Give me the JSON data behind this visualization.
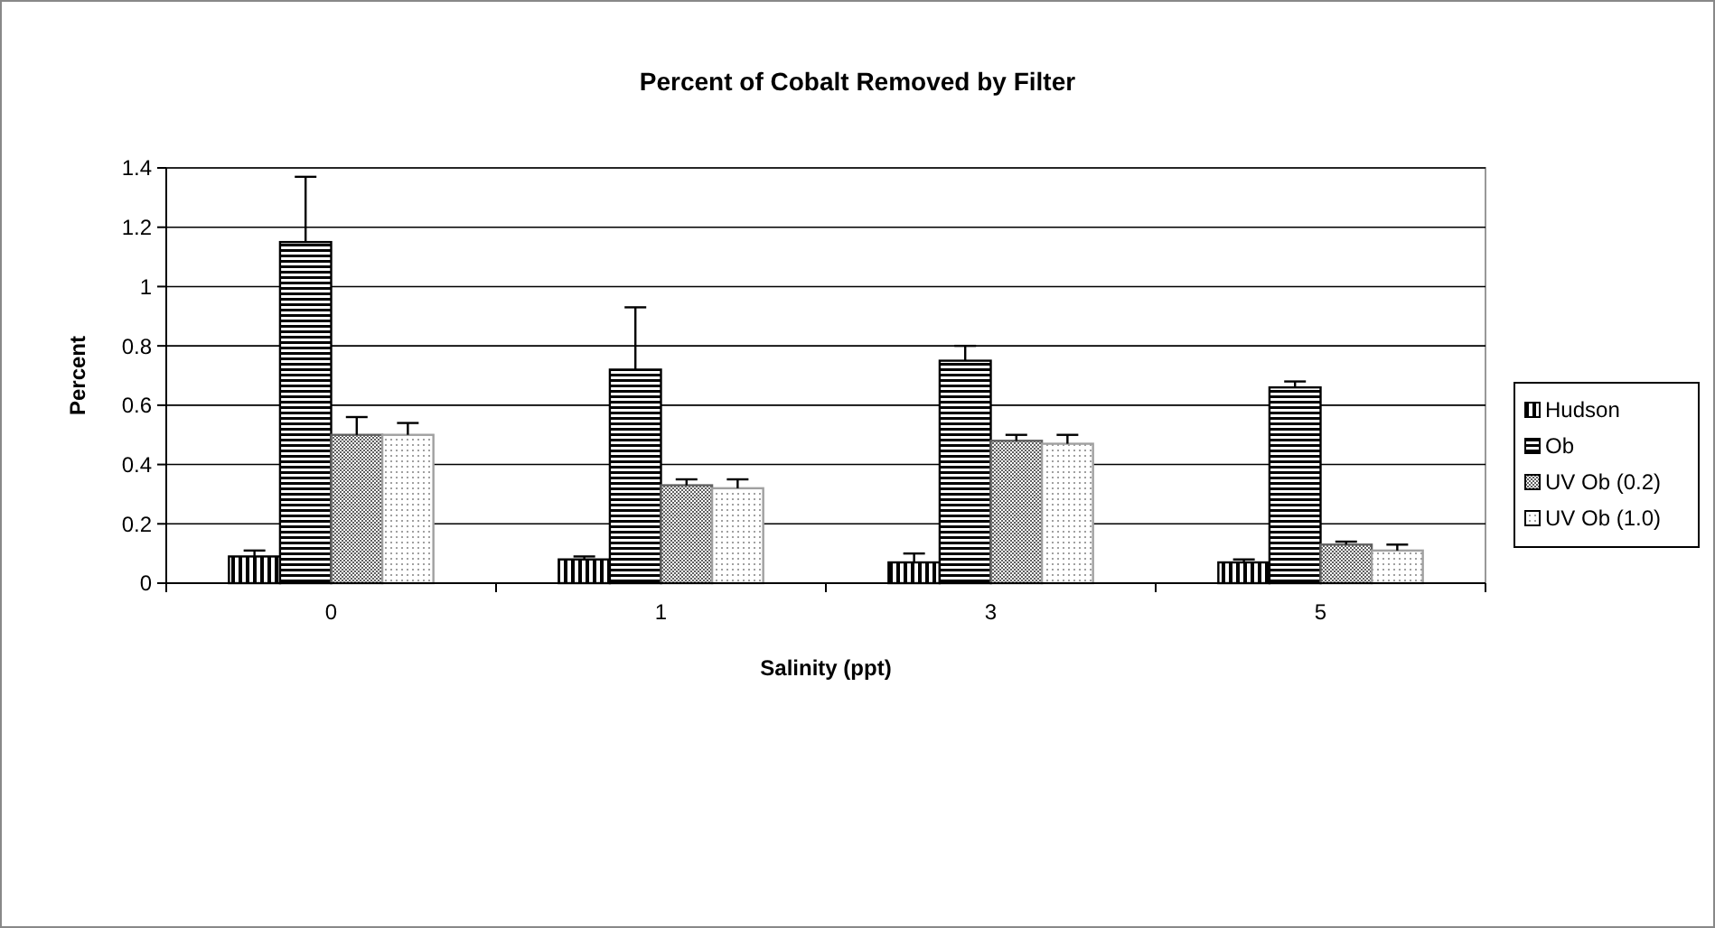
{
  "chart_data": {
    "type": "bar",
    "title": "Percent of Cobalt Removed by Filter",
    "xlabel": "Salinity (ppt)",
    "ylabel": "Percent",
    "categories": [
      "0",
      "1",
      "3",
      "5"
    ],
    "series": [
      {
        "name": "Hudson",
        "color": "#000000",
        "values": [
          0.09,
          0.08,
          0.07,
          0.07
        ],
        "errors": [
          0.02,
          0.01,
          0.03,
          0.01
        ]
      },
      {
        "name": "Ob",
        "color": "#000000",
        "values": [
          1.15,
          0.72,
          0.75,
          0.66
        ],
        "errors": [
          0.22,
          0.21,
          0.05,
          0.02
        ]
      },
      {
        "name": "UV Ob (0.2)",
        "color": "#606060",
        "values": [
          0.5,
          0.33,
          0.48,
          0.13
        ],
        "errors": [
          0.06,
          0.02,
          0.02,
          0.01
        ]
      },
      {
        "name": "UV Ob (1.0)",
        "color": "#a0a0a0",
        "values": [
          0.5,
          0.32,
          0.47,
          0.11
        ],
        "errors": [
          0.04,
          0.03,
          0.03,
          0.02
        ]
      }
    ],
    "ylim": [
      0,
      1.4
    ],
    "yticks": [
      0,
      0.2,
      0.4,
      0.6,
      0.8,
      1,
      1.2,
      1.4
    ],
    "grid": "y",
    "legend": "right"
  }
}
